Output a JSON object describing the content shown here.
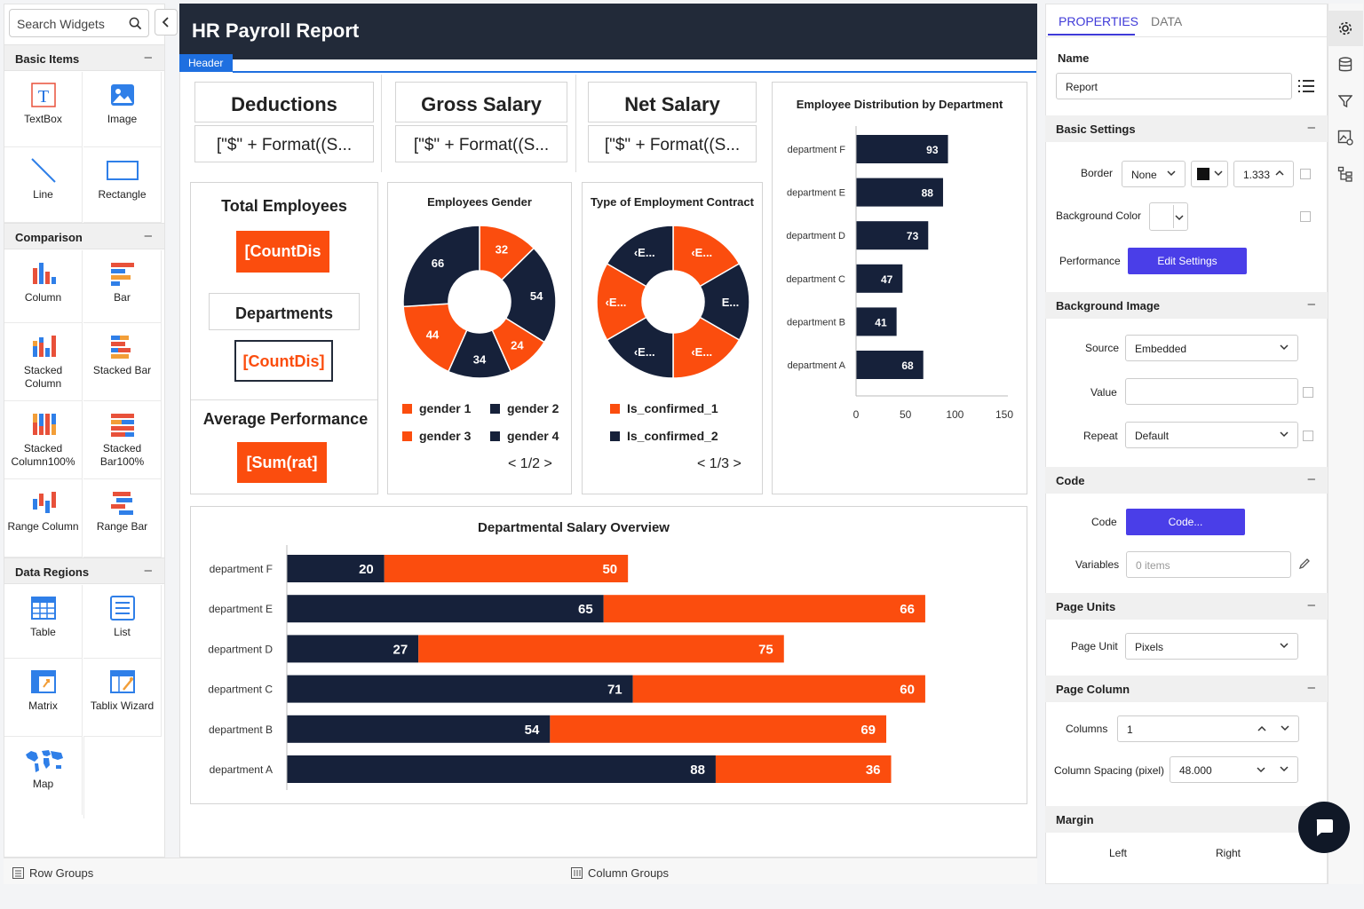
{
  "search": {
    "placeholder": "Search Widgets"
  },
  "sidebar": {
    "categories": [
      {
        "title": "Basic Items",
        "items": [
          "TextBox",
          "Image",
          "Line",
          "Rectangle"
        ]
      },
      {
        "title": "Comparison",
        "items": [
          "Column",
          "Bar",
          "Stacked Column",
          "Stacked Bar",
          "Stacked Column100%",
          "Stacked Bar100%",
          "Range Column",
          "Range Bar"
        ]
      },
      {
        "title": "Data Regions",
        "items": [
          "Table",
          "List",
          "Matrix",
          "Tablix Wizard",
          "Map"
        ]
      }
    ]
  },
  "report": {
    "title": "HR Payroll Report",
    "header_tag": "Header",
    "cards": {
      "deductions": {
        "title": "Deductions",
        "formula": "[\"$\" + Format((S..."
      },
      "gross": {
        "title": "Gross Salary",
        "formula": "[\"$\" + Format((S..."
      },
      "net": {
        "title": "Net Salary",
        "formula": "[\"$\" + Format((S..."
      }
    },
    "total_employees": {
      "title": "Total Employees",
      "value": "[CountDis"
    },
    "departments": {
      "title": "Departments",
      "value": "[CountDis]"
    },
    "avg_perf": {
      "title": "Average Performance",
      "value": "[Sum(rat]"
    }
  },
  "colors": {
    "navy": "#16213a",
    "orange": "#fb4d0e",
    "accent": "#1e6fe0",
    "button": "#4a3ee8"
  },
  "chart_data": [
    {
      "type": "pie",
      "title": "Employees Gender",
      "slice_labels": [
        "32",
        "54",
        "24",
        "34",
        "44",
        "66"
      ],
      "values": [
        32,
        54,
        24,
        34,
        44,
        66
      ],
      "slice_colors": [
        "#fb4d0e",
        "#16213a",
        "#fb4d0e",
        "#16213a",
        "#fb4d0e",
        "#16213a"
      ],
      "legend": [
        {
          "name": "gender 1",
          "color": "#fb4d0e"
        },
        {
          "name": "gender 2",
          "color": "#16213a"
        },
        {
          "name": "gender 3",
          "color": "#fb4d0e"
        },
        {
          "name": "gender 4",
          "color": "#16213a"
        }
      ],
      "pager": "< 1/2 >"
    },
    {
      "type": "pie",
      "title": "Type of Employment Contract",
      "slice_labels": [
        "‹E...",
        "E...",
        "‹E...",
        "‹E...",
        "‹E...",
        "‹E..."
      ],
      "values": [
        1,
        1,
        1,
        1,
        1,
        1
      ],
      "slice_colors": [
        "#fb4d0e",
        "#16213a",
        "#fb4d0e",
        "#16213a",
        "#fb4d0e",
        "#16213a"
      ],
      "legend": [
        {
          "name": "Is_confirmed_1",
          "color": "#fb4d0e"
        },
        {
          "name": "Is_confirmed_2",
          "color": "#16213a"
        }
      ],
      "pager": "< 1/3 >"
    },
    {
      "type": "bar",
      "title": "Employee Distribution by Department",
      "categories": [
        "department F",
        "department E",
        "department D",
        "department C",
        "department B",
        "department A"
      ],
      "values": [
        93,
        88,
        73,
        47,
        41,
        68
      ],
      "xlim": [
        0,
        150
      ],
      "xticks": [
        "0",
        "50",
        "100",
        "150"
      ]
    },
    {
      "type": "bar",
      "stacked": true,
      "title": "Departmental Salary Overview",
      "categories": [
        "department F",
        "department E",
        "department D",
        "department C",
        "department B",
        "department A"
      ],
      "series": [
        {
          "values": [
            20,
            65,
            27,
            71,
            54,
            88
          ],
          "color": "#16213a"
        },
        {
          "values": [
            50,
            66,
            75,
            60,
            69,
            36
          ],
          "color": "#fb4d0e"
        }
      ]
    }
  ],
  "properties": {
    "tabs": [
      "PROPERTIES",
      "DATA"
    ],
    "name_label": "Name",
    "name_value": "Report",
    "sections": [
      "Basic Settings",
      "Background Image",
      "Code",
      "Page Units",
      "Page Column",
      "Margin"
    ],
    "border_label": "Border",
    "border_value": "None",
    "border_width": "1.333",
    "bg_color_label": "Background Color",
    "performance_label": "Performance",
    "edit_settings": "Edit Settings",
    "source_label": "Source",
    "source_value": "Embedded",
    "value_label": "Value",
    "repeat_label": "Repeat",
    "repeat_value": "Default",
    "code_label": "Code",
    "code_button": "Code...",
    "variables_label": "Variables",
    "variables_placeholder": "0 items",
    "page_unit_label": "Page Unit",
    "page_unit_value": "Pixels",
    "columns_label": "Columns",
    "columns_value": "1",
    "column_spacing_label": "Column Spacing (pixel)",
    "column_spacing_value": "48.000",
    "margin_left": "Left",
    "margin_right": "Right"
  },
  "bottom": {
    "row_groups": "Row Groups",
    "column_groups": "Column Groups"
  }
}
